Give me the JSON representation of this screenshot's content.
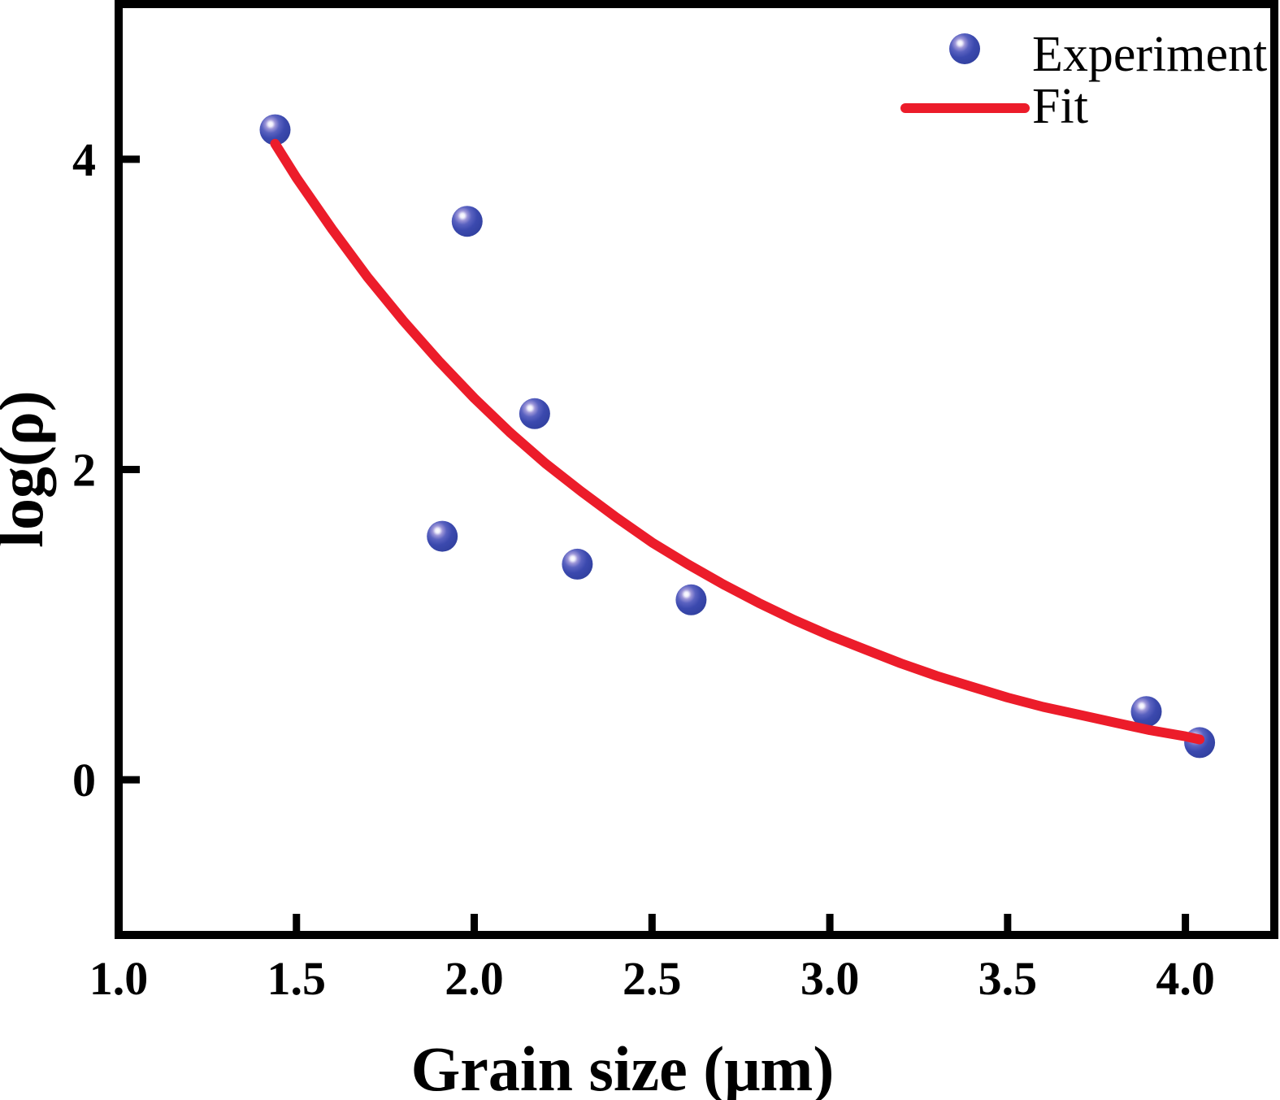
{
  "figure": {
    "background": "#ffffff",
    "axis_color": "#000000"
  },
  "chart_data": {
    "type": "scatter",
    "title": "",
    "xlabel": "Grain size (μm)",
    "ylabel": "log(ρ)",
    "xlim": [
      1.0,
      4.25
    ],
    "ylim": [
      -1.0,
      5.0
    ],
    "x_ticks": [
      1.0,
      1.5,
      2.0,
      2.5,
      3.0,
      3.5,
      4.0
    ],
    "x_tick_labels": [
      "1.0",
      "1.5",
      "2.0",
      "2.5",
      "3.0",
      "3.5",
      "4.0"
    ],
    "y_ticks": [
      0,
      2,
      4
    ],
    "y_tick_labels": [
      "0",
      "2",
      "4"
    ],
    "grid": false,
    "legend_position": "upper-right",
    "series": [
      {
        "name": "Experiment",
        "type": "scatter",
        "marker": "sphere",
        "color": "#3b49ae",
        "marker_highlight": "#efeefb",
        "marker_mid": "#9d96d8",
        "points": [
          [
            1.44,
            4.19
          ],
          [
            1.98,
            3.6
          ],
          [
            2.17,
            2.36
          ],
          [
            1.91,
            1.57
          ],
          [
            2.29,
            1.39
          ],
          [
            2.61,
            1.16
          ],
          [
            3.89,
            0.44
          ],
          [
            4.04,
            0.24
          ]
        ]
      },
      {
        "name": "Fit",
        "type": "line",
        "color": "#ec1c2a",
        "points": [
          [
            1.44,
            4.1
          ],
          [
            1.5,
            3.88
          ],
          [
            1.6,
            3.55
          ],
          [
            1.7,
            3.24
          ],
          [
            1.8,
            2.96
          ],
          [
            1.9,
            2.7
          ],
          [
            2.0,
            2.46
          ],
          [
            2.1,
            2.24
          ],
          [
            2.2,
            2.04
          ],
          [
            2.3,
            1.86
          ],
          [
            2.4,
            1.69
          ],
          [
            2.5,
            1.53
          ],
          [
            2.6,
            1.39
          ],
          [
            2.7,
            1.26
          ],
          [
            2.8,
            1.14
          ],
          [
            2.9,
            1.03
          ],
          [
            3.0,
            0.93
          ],
          [
            3.1,
            0.84
          ],
          [
            3.2,
            0.75
          ],
          [
            3.3,
            0.67
          ],
          [
            3.4,
            0.6
          ],
          [
            3.5,
            0.53
          ],
          [
            3.6,
            0.47
          ],
          [
            3.7,
            0.42
          ],
          [
            3.8,
            0.37
          ],
          [
            3.9,
            0.32
          ],
          [
            4.0,
            0.28
          ],
          [
            4.04,
            0.26
          ]
        ]
      }
    ]
  }
}
